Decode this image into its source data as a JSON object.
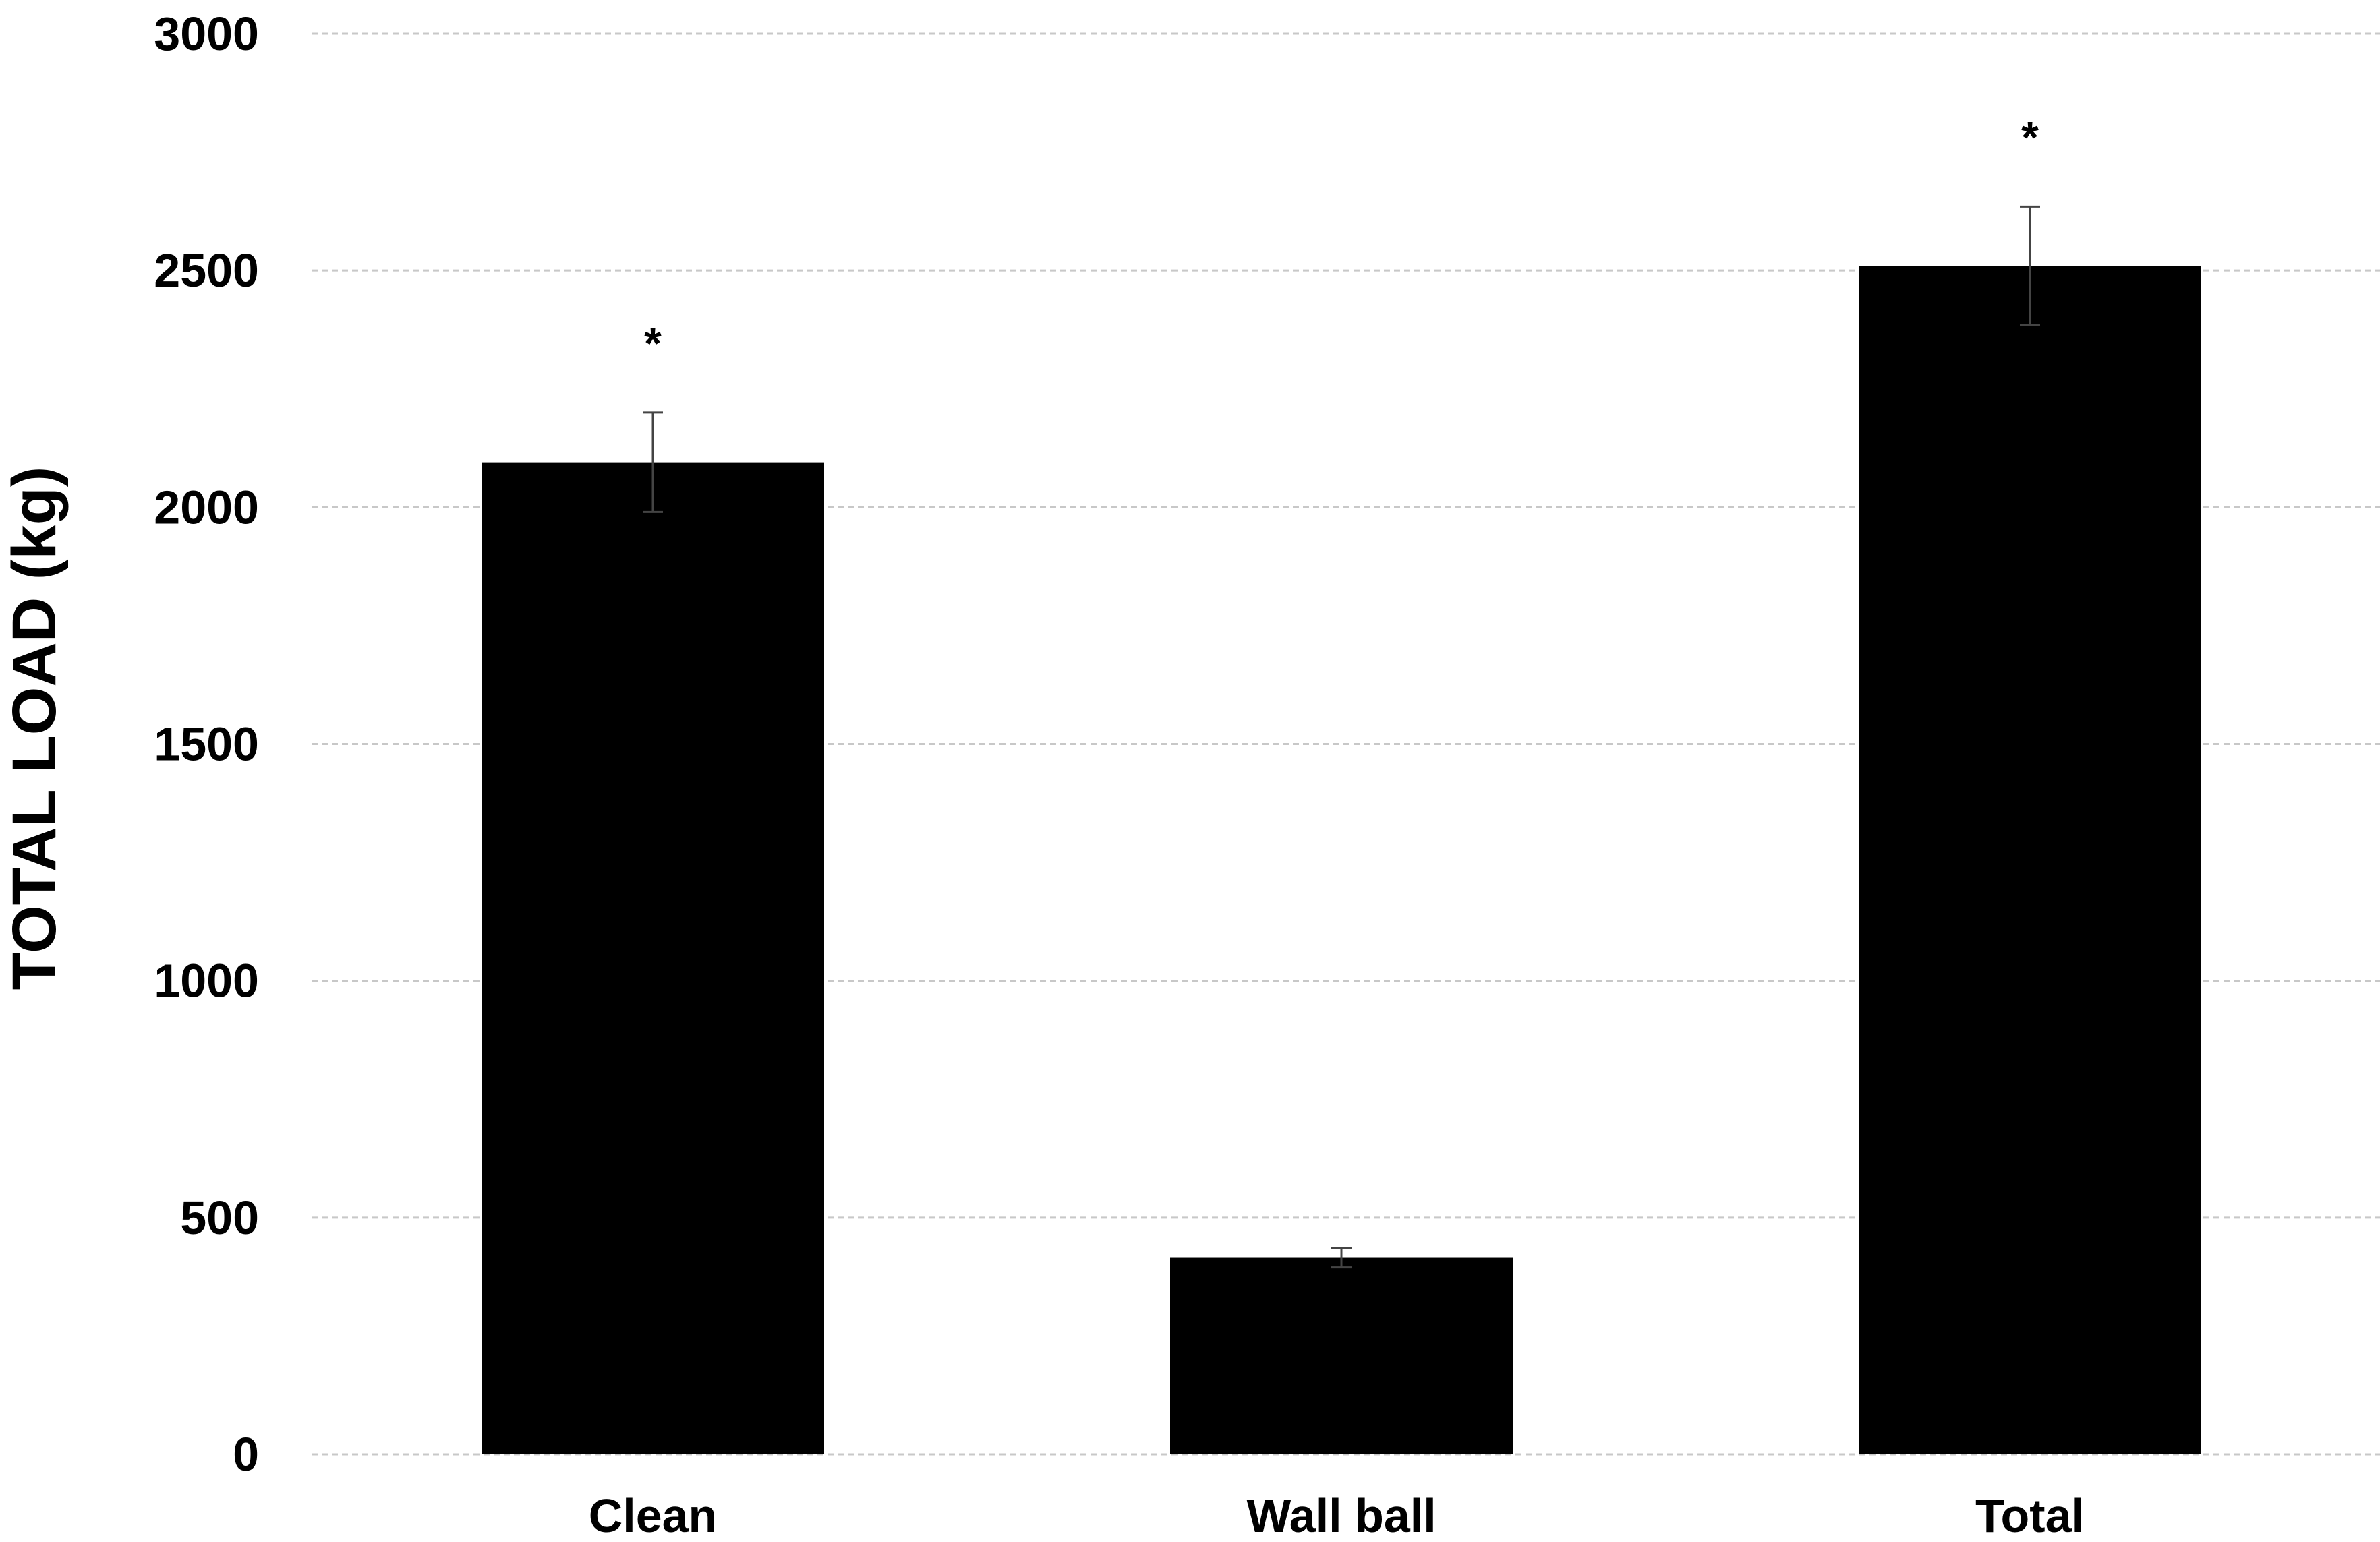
{
  "chart_data": {
    "type": "bar",
    "title": "",
    "xlabel": "",
    "ylabel": "TOTAL LOAD (kg)",
    "ylim": [
      0,
      3000
    ],
    "yticks": [
      0,
      500,
      1000,
      1500,
      2000,
      2500,
      3000
    ],
    "categories": [
      "Clean",
      "Wall ball",
      "Total"
    ],
    "values": [
      2095,
      415,
      2510
    ],
    "error": [
      105,
      20,
      125
    ],
    "annotations": [
      "*",
      "",
      "*"
    ],
    "grid": true,
    "colors": {
      "bar": "#000000",
      "grid": "#c8c8c8",
      "error_bar": "#444444"
    }
  }
}
